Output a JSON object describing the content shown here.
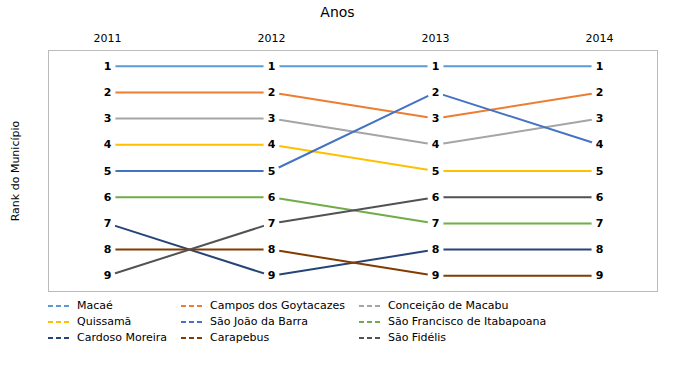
{
  "chart_data": {
    "type": "line",
    "title": "Anos",
    "ylabel": "Rank do Município",
    "categories": [
      "2011",
      "2012",
      "2013",
      "2014"
    ],
    "series": [
      {
        "name": "Macaé",
        "color": "#5B9BD5",
        "values": [
          1,
          1,
          1,
          1
        ]
      },
      {
        "name": "Campos dos Goytacazes",
        "color": "#ED7D31",
        "values": [
          2,
          2,
          3,
          2
        ]
      },
      {
        "name": "Conceição de Macabu",
        "color": "#A5A5A5",
        "values": [
          3,
          3,
          4,
          3
        ]
      },
      {
        "name": "Quissamã",
        "color": "#FFC000",
        "values": [
          4,
          4,
          5,
          5
        ]
      },
      {
        "name": "São João da Barra",
        "color": "#4472C4",
        "values": [
          5,
          5,
          2,
          4
        ]
      },
      {
        "name": "São Francisco de Itabapoana",
        "color": "#70AD47",
        "values": [
          6,
          6,
          7,
          7
        ]
      },
      {
        "name": "Cardoso Moreira",
        "color": "#264478",
        "values": [
          7,
          9,
          8,
          8
        ]
      },
      {
        "name": "Carapebus",
        "color": "#833C00",
        "values": [
          8,
          8,
          9,
          9
        ]
      },
      {
        "name": "São Fidélis",
        "color": "#525252",
        "values": [
          9,
          7,
          6,
          6
        ]
      }
    ],
    "ylim": [
      9.6,
      0.4
    ],
    "tick_labels": "x",
    "data_labels": true,
    "legend": "bottom"
  }
}
